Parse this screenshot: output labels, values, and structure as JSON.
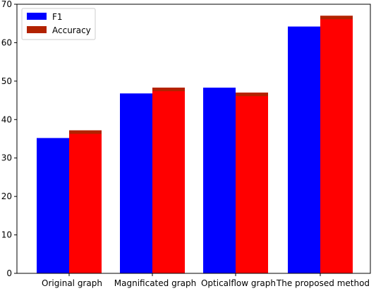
{
  "chart_data": {
    "type": "bar",
    "categories": [
      "Original graph",
      "Magnificated graph",
      "Opticalflow graph",
      "The proposed method"
    ],
    "series": [
      {
        "name": "F1",
        "values": [
          35.2,
          46.8,
          48.3,
          64.2
        ],
        "color": "#0000ff"
      },
      {
        "name": "Accuracy",
        "values": [
          37.2,
          48.3,
          47.0,
          67.0
        ],
        "color": "#ff0000",
        "top_band_color": "#b22200"
      }
    ],
    "title": "",
    "xlabel": "",
    "ylabel": "",
    "ylim": [
      0,
      70
    ],
    "yticks": [
      "0",
      "10",
      "20",
      "30",
      "40",
      "50",
      "60",
      "70"
    ],
    "grid": false,
    "legend_position": "top-left"
  }
}
